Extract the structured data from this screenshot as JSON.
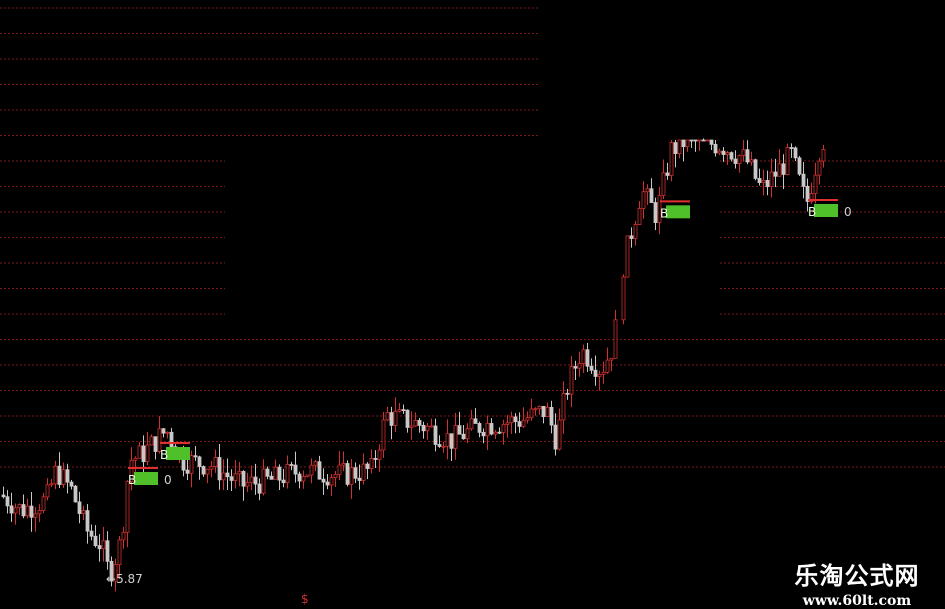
{
  "colors": {
    "background": "#000000",
    "grid": "#7a1818",
    "up": "#d03030",
    "down": "#c8c8c8",
    "signal_bg": "#4fbf2a",
    "signal_line": "#e03030",
    "label": "#d0d0d0"
  },
  "chart_data": {
    "type": "candlestick",
    "title": "",
    "xlabel": "",
    "ylabel": "",
    "grid": true,
    "grid_style": "dashed horizontal",
    "min_label": "5.87",
    "close_waypoints": [
      [
        0,
        7.47
      ],
      [
        20,
        7.17
      ],
      [
        45,
        7.37
      ],
      [
        55,
        7.97
      ],
      [
        70,
        7.57
      ],
      [
        85,
        6.77
      ],
      [
        100,
        6.47
      ],
      [
        108,
        5.87
      ],
      [
        120,
        6.57
      ],
      [
        128,
        8.17
      ],
      [
        140,
        8.27
      ],
      [
        165,
        8.77
      ],
      [
        180,
        8.17
      ],
      [
        210,
        8.07
      ],
      [
        240,
        7.67
      ],
      [
        270,
        7.77
      ],
      [
        300,
        7.97
      ],
      [
        340,
        7.87
      ],
      [
        370,
        7.97
      ],
      [
        385,
        9.07
      ],
      [
        420,
        8.87
      ],
      [
        450,
        8.57
      ],
      [
        480,
        8.87
      ],
      [
        520,
        8.97
      ],
      [
        545,
        9.17
      ],
      [
        555,
        8.57
      ],
      [
        565,
        9.57
      ],
      [
        580,
        10.37
      ],
      [
        600,
        9.97
      ],
      [
        612,
        10.47
      ],
      [
        622,
        12.07
      ],
      [
        640,
        13.57
      ],
      [
        655,
        13.07
      ],
      [
        670,
        14.37
      ],
      [
        685,
        14.57
      ],
      [
        720,
        14.47
      ],
      [
        745,
        14.17
      ],
      [
        760,
        13.57
      ],
      [
        790,
        14.27
      ],
      [
        805,
        13.27
      ],
      [
        820,
        14.57
      ]
    ],
    "signals": [
      {
        "bar_x": 128,
        "text": "B",
        "value": "0"
      },
      {
        "bar_x": 160,
        "text": "B",
        "value": ""
      },
      {
        "bar_x": 660,
        "text": "B",
        "value": ""
      },
      {
        "bar_x": 808,
        "text": "B",
        "value": "0"
      }
    ]
  },
  "footer_marker": "$",
  "watermark": {
    "title": "乐淘公式网",
    "url": "www.60lt.com"
  }
}
